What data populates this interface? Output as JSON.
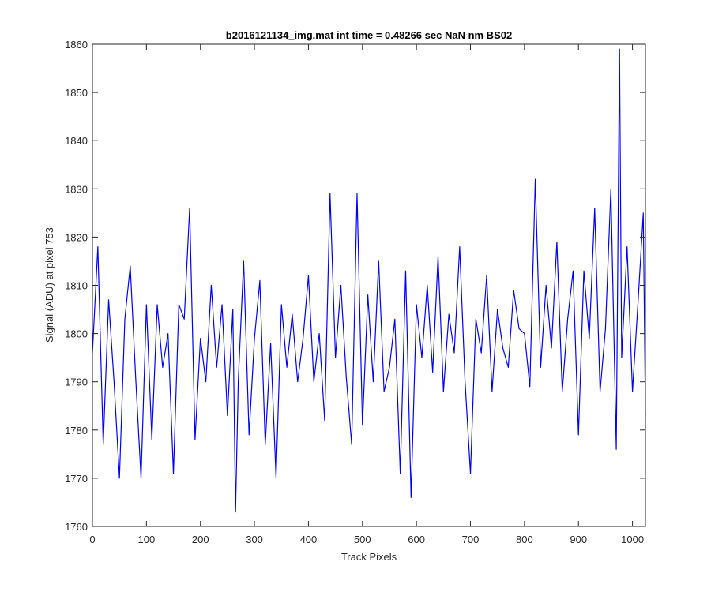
{
  "chart_data": {
    "type": "line",
    "title": "b2016121134_img.mat int time = 0.48266 sec  NaN nm BS02",
    "xlabel": "Track Pixels",
    "ylabel": "Signal (ADU) at pixel 753",
    "xlim": [
      0,
      1024
    ],
    "ylim": [
      1760,
      1860
    ],
    "xticks": [
      0,
      100,
      200,
      300,
      400,
      500,
      600,
      700,
      800,
      900,
      1000
    ],
    "yticks": [
      1760,
      1770,
      1780,
      1790,
      1800,
      1810,
      1820,
      1830,
      1840,
      1850,
      1860
    ],
    "grid": false,
    "legend": "none",
    "series_color": "#0000ff",
    "series": [
      {
        "x": [
          0,
          10,
          20,
          30,
          40,
          50,
          60,
          70,
          80,
          90,
          100,
          110,
          120,
          130,
          140,
          150,
          160,
          170,
          180,
          190,
          200,
          210,
          220,
          230,
          240,
          250,
          260,
          265,
          270,
          280,
          290,
          300,
          310,
          320,
          330,
          340,
          350,
          360,
          370,
          380,
          390,
          400,
          410,
          420,
          430,
          440,
          450,
          460,
          470,
          480,
          490,
          500,
          510,
          520,
          530,
          540,
          550,
          560,
          570,
          580,
          590,
          600,
          610,
          620,
          630,
          640,
          650,
          660,
          670,
          680,
          690,
          700,
          710,
          720,
          730,
          740,
          750,
          760,
          770,
          780,
          790,
          800,
          810,
          820,
          830,
          840,
          850,
          860,
          870,
          880,
          890,
          900,
          910,
          920,
          930,
          940,
          950,
          960,
          970,
          976,
          980,
          990,
          1000,
          1010,
          1020,
          1024
        ],
        "values": [
          1796,
          1818,
          1777,
          1807,
          1790,
          1770,
          1803,
          1814,
          1791,
          1770,
          1806,
          1778,
          1806,
          1793,
          1800,
          1771,
          1806,
          1803,
          1826,
          1778,
          1799,
          1790,
          1810,
          1793,
          1806,
          1783,
          1805,
          1763,
          1790,
          1815,
          1779,
          1799,
          1811,
          1777,
          1798,
          1770,
          1806,
          1793,
          1804,
          1790,
          1799,
          1812,
          1790,
          1800,
          1782,
          1829,
          1795,
          1810,
          1791,
          1777,
          1829,
          1781,
          1808,
          1790,
          1815,
          1788,
          1793,
          1803,
          1771,
          1813,
          1766,
          1806,
          1795,
          1810,
          1792,
          1816,
          1788,
          1804,
          1796,
          1818,
          1790,
          1771,
          1803,
          1796,
          1812,
          1788,
          1805,
          1797,
          1793,
          1809,
          1801,
          1800,
          1789,
          1832,
          1793,
          1810,
          1797,
          1819,
          1788,
          1803,
          1813,
          1779,
          1813,
          1799,
          1826,
          1788,
          1801,
          1830,
          1776,
          1859,
          1795,
          1818,
          1788,
          1806,
          1825,
          1783
        ]
      }
    ]
  }
}
